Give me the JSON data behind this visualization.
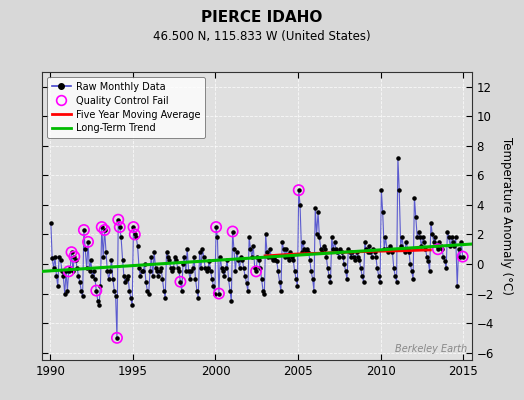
{
  "title": "PIERCE IDAHO",
  "subtitle": "46.500 N, 115.833 W (United States)",
  "ylabel_right": "Temperature Anomaly (°C)",
  "watermark": "Berkeley Earth",
  "xlim": [
    1989.5,
    2015.5
  ],
  "ylim": [
    -6.5,
    13.0
  ],
  "yticks": [
    -6,
    -4,
    -2,
    0,
    2,
    4,
    6,
    8,
    10,
    12
  ],
  "xticks": [
    1990,
    1995,
    2000,
    2005,
    2010,
    2015
  ],
  "bg_color": "#d8d8d8",
  "plot_bg_color": "#e0e0e0",
  "raw_line_color": "#4444cc",
  "raw_marker_color": "#000000",
  "qc_fail_color": "#ff00ff",
  "moving_avg_color": "#ff0000",
  "trend_color": "#00bb00",
  "raw_data": [
    [
      1990.04,
      2.8
    ],
    [
      1990.12,
      0.4
    ],
    [
      1990.21,
      -0.3
    ],
    [
      1990.29,
      0.5
    ],
    [
      1990.38,
      -0.8
    ],
    [
      1990.46,
      -1.5
    ],
    [
      1990.54,
      0.5
    ],
    [
      1990.63,
      0.3
    ],
    [
      1990.71,
      -0.5
    ],
    [
      1990.79,
      -0.8
    ],
    [
      1990.88,
      -2.0
    ],
    [
      1990.96,
      -0.5
    ],
    [
      1991.04,
      -1.8
    ],
    [
      1991.12,
      -0.5
    ],
    [
      1991.21,
      -0.3
    ],
    [
      1991.29,
      0.8
    ],
    [
      1991.38,
      -0.5
    ],
    [
      1991.46,
      0.5
    ],
    [
      1991.54,
      0.3
    ],
    [
      1991.63,
      -0.3
    ],
    [
      1991.71,
      -0.8
    ],
    [
      1991.79,
      -1.2
    ],
    [
      1991.88,
      -1.8
    ],
    [
      1991.96,
      -2.2
    ],
    [
      1992.04,
      2.3
    ],
    [
      1992.12,
      1.0
    ],
    [
      1992.21,
      -0.3
    ],
    [
      1992.29,
      1.5
    ],
    [
      1992.38,
      -0.5
    ],
    [
      1992.46,
      0.3
    ],
    [
      1992.54,
      -0.8
    ],
    [
      1992.63,
      -0.5
    ],
    [
      1992.71,
      -1.0
    ],
    [
      1992.79,
      -1.8
    ],
    [
      1992.88,
      -2.5
    ],
    [
      1992.96,
      -2.8
    ],
    [
      1993.04,
      -1.5
    ],
    [
      1993.12,
      2.5
    ],
    [
      1993.21,
      0.5
    ],
    [
      1993.29,
      2.3
    ],
    [
      1993.38,
      0.8
    ],
    [
      1993.46,
      -0.5
    ],
    [
      1993.54,
      -1.0
    ],
    [
      1993.63,
      -0.5
    ],
    [
      1993.71,
      0.3
    ],
    [
      1993.79,
      -1.0
    ],
    [
      1993.88,
      -1.8
    ],
    [
      1993.96,
      -2.2
    ],
    [
      1994.04,
      -5.0
    ],
    [
      1994.12,
      3.0
    ],
    [
      1994.21,
      2.5
    ],
    [
      1994.29,
      1.8
    ],
    [
      1994.38,
      0.3
    ],
    [
      1994.46,
      -0.8
    ],
    [
      1994.54,
      -1.2
    ],
    [
      1994.63,
      -1.0
    ],
    [
      1994.71,
      -0.8
    ],
    [
      1994.79,
      -1.8
    ],
    [
      1994.88,
      -2.3
    ],
    [
      1994.96,
      -2.8
    ],
    [
      1995.04,
      2.5
    ],
    [
      1995.12,
      2.0
    ],
    [
      1995.21,
      1.8
    ],
    [
      1995.29,
      1.2
    ],
    [
      1995.38,
      -0.3
    ],
    [
      1995.46,
      -0.8
    ],
    [
      1995.54,
      -0.5
    ],
    [
      1995.63,
      -0.5
    ],
    [
      1995.71,
      0.0
    ],
    [
      1995.79,
      -1.2
    ],
    [
      1995.88,
      -1.8
    ],
    [
      1995.96,
      -2.0
    ],
    [
      1996.04,
      -0.5
    ],
    [
      1996.12,
      0.5
    ],
    [
      1996.21,
      -0.8
    ],
    [
      1996.29,
      0.8
    ],
    [
      1996.38,
      -0.3
    ],
    [
      1996.46,
      -0.5
    ],
    [
      1996.54,
      -0.8
    ],
    [
      1996.63,
      -0.5
    ],
    [
      1996.71,
      -0.3
    ],
    [
      1996.79,
      -1.0
    ],
    [
      1996.88,
      -1.8
    ],
    [
      1996.96,
      -2.3
    ],
    [
      1997.04,
      0.8
    ],
    [
      1997.12,
      0.5
    ],
    [
      1997.21,
      0.3
    ],
    [
      1997.29,
      -0.3
    ],
    [
      1997.38,
      -0.5
    ],
    [
      1997.46,
      -0.3
    ],
    [
      1997.54,
      0.5
    ],
    [
      1997.63,
      0.3
    ],
    [
      1997.71,
      -0.3
    ],
    [
      1997.79,
      -0.5
    ],
    [
      1997.88,
      -1.2
    ],
    [
      1997.96,
      -1.8
    ],
    [
      1998.04,
      0.0
    ],
    [
      1998.12,
      0.5
    ],
    [
      1998.21,
      -0.5
    ],
    [
      1998.29,
      1.0
    ],
    [
      1998.38,
      -0.5
    ],
    [
      1998.46,
      -1.0
    ],
    [
      1998.54,
      -0.5
    ],
    [
      1998.63,
      -0.3
    ],
    [
      1998.71,
      0.5
    ],
    [
      1998.79,
      -1.0
    ],
    [
      1998.88,
      -1.8
    ],
    [
      1998.96,
      -2.3
    ],
    [
      1999.04,
      0.8
    ],
    [
      1999.12,
      -0.3
    ],
    [
      1999.21,
      1.0
    ],
    [
      1999.29,
      0.5
    ],
    [
      1999.38,
      -0.3
    ],
    [
      1999.46,
      -0.5
    ],
    [
      1999.54,
      -0.3
    ],
    [
      1999.63,
      0.2
    ],
    [
      1999.71,
      -0.5
    ],
    [
      1999.79,
      -1.0
    ],
    [
      1999.88,
      -1.5
    ],
    [
      1999.96,
      -2.0
    ],
    [
      2000.04,
      2.5
    ],
    [
      2000.12,
      1.8
    ],
    [
      2000.21,
      -2.0
    ],
    [
      2000.29,
      0.5
    ],
    [
      2000.38,
      -0.3
    ],
    [
      2000.46,
      -0.5
    ],
    [
      2000.54,
      -0.8
    ],
    [
      2000.63,
      -0.3
    ],
    [
      2000.71,
      0.3
    ],
    [
      2000.79,
      -1.0
    ],
    [
      2000.88,
      -1.8
    ],
    [
      2000.96,
      -2.5
    ],
    [
      2001.04,
      2.2
    ],
    [
      2001.12,
      1.0
    ],
    [
      2001.21,
      -0.5
    ],
    [
      2001.29,
      0.8
    ],
    [
      2001.38,
      0.3
    ],
    [
      2001.46,
      -0.3
    ],
    [
      2001.54,
      0.5
    ],
    [
      2001.63,
      0.3
    ],
    [
      2001.71,
      -0.3
    ],
    [
      2001.79,
      -0.8
    ],
    [
      2001.88,
      -1.3
    ],
    [
      2001.96,
      -1.8
    ],
    [
      2002.04,
      1.8
    ],
    [
      2002.12,
      1.0
    ],
    [
      2002.21,
      0.5
    ],
    [
      2002.29,
      1.2
    ],
    [
      2002.38,
      -0.3
    ],
    [
      2002.46,
      -0.5
    ],
    [
      2002.54,
      0.5
    ],
    [
      2002.63,
      0.3
    ],
    [
      2002.71,
      -0.3
    ],
    [
      2002.79,
      -1.0
    ],
    [
      2002.88,
      -1.8
    ],
    [
      2002.96,
      -2.0
    ],
    [
      2003.04,
      2.0
    ],
    [
      2003.12,
      0.8
    ],
    [
      2003.21,
      0.5
    ],
    [
      2003.29,
      1.0
    ],
    [
      2003.38,
      0.5
    ],
    [
      2003.46,
      0.3
    ],
    [
      2003.54,
      0.5
    ],
    [
      2003.63,
      0.3
    ],
    [
      2003.71,
      0.2
    ],
    [
      2003.79,
      -0.5
    ],
    [
      2003.88,
      -1.2
    ],
    [
      2003.96,
      -1.8
    ],
    [
      2004.04,
      1.5
    ],
    [
      2004.12,
      1.0
    ],
    [
      2004.21,
      0.5
    ],
    [
      2004.29,
      1.0
    ],
    [
      2004.38,
      0.5
    ],
    [
      2004.46,
      0.3
    ],
    [
      2004.54,
      0.8
    ],
    [
      2004.63,
      0.5
    ],
    [
      2004.71,
      0.3
    ],
    [
      2004.79,
      -0.5
    ],
    [
      2004.88,
      -1.0
    ],
    [
      2004.96,
      -1.5
    ],
    [
      2005.04,
      5.0
    ],
    [
      2005.12,
      4.0
    ],
    [
      2005.21,
      0.8
    ],
    [
      2005.29,
      1.5
    ],
    [
      2005.38,
      1.0
    ],
    [
      2005.46,
      0.8
    ],
    [
      2005.54,
      1.0
    ],
    [
      2005.63,
      0.8
    ],
    [
      2005.71,
      0.3
    ],
    [
      2005.79,
      -0.5
    ],
    [
      2005.88,
      -1.0
    ],
    [
      2005.96,
      -1.8
    ],
    [
      2006.04,
      3.8
    ],
    [
      2006.12,
      2.0
    ],
    [
      2006.21,
      3.5
    ],
    [
      2006.29,
      1.8
    ],
    [
      2006.38,
      1.0
    ],
    [
      2006.46,
      0.8
    ],
    [
      2006.54,
      1.2
    ],
    [
      2006.63,
      1.0
    ],
    [
      2006.71,
      0.5
    ],
    [
      2006.79,
      -0.3
    ],
    [
      2006.88,
      -0.8
    ],
    [
      2006.96,
      -1.2
    ],
    [
      2007.04,
      1.8
    ],
    [
      2007.12,
      1.0
    ],
    [
      2007.21,
      1.5
    ],
    [
      2007.29,
      1.0
    ],
    [
      2007.38,
      0.8
    ],
    [
      2007.46,
      0.5
    ],
    [
      2007.54,
      1.0
    ],
    [
      2007.63,
      0.8
    ],
    [
      2007.71,
      0.5
    ],
    [
      2007.79,
      0.0
    ],
    [
      2007.88,
      -0.5
    ],
    [
      2007.96,
      -1.0
    ],
    [
      2008.04,
      1.0
    ],
    [
      2008.12,
      0.8
    ],
    [
      2008.21,
      0.5
    ],
    [
      2008.29,
      0.8
    ],
    [
      2008.38,
      0.5
    ],
    [
      2008.46,
      0.3
    ],
    [
      2008.54,
      0.8
    ],
    [
      2008.63,
      0.5
    ],
    [
      2008.71,
      0.3
    ],
    [
      2008.79,
      -0.3
    ],
    [
      2008.88,
      -0.8
    ],
    [
      2008.96,
      -1.2
    ],
    [
      2009.04,
      1.5
    ],
    [
      2009.12,
      1.0
    ],
    [
      2009.21,
      0.8
    ],
    [
      2009.29,
      1.2
    ],
    [
      2009.38,
      0.8
    ],
    [
      2009.46,
      0.5
    ],
    [
      2009.54,
      1.0
    ],
    [
      2009.63,
      0.8
    ],
    [
      2009.71,
      0.5
    ],
    [
      2009.79,
      -0.3
    ],
    [
      2009.88,
      -0.8
    ],
    [
      2009.96,
      -1.2
    ],
    [
      2010.04,
      5.0
    ],
    [
      2010.12,
      3.5
    ],
    [
      2010.21,
      1.0
    ],
    [
      2010.29,
      1.8
    ],
    [
      2010.38,
      1.0
    ],
    [
      2010.46,
      0.8
    ],
    [
      2010.54,
      1.2
    ],
    [
      2010.63,
      1.0
    ],
    [
      2010.71,
      0.8
    ],
    [
      2010.79,
      -0.3
    ],
    [
      2010.88,
      -0.8
    ],
    [
      2010.96,
      -1.2
    ],
    [
      2011.04,
      7.2
    ],
    [
      2011.12,
      5.0
    ],
    [
      2011.21,
      1.2
    ],
    [
      2011.29,
      1.8
    ],
    [
      2011.38,
      1.0
    ],
    [
      2011.46,
      0.8
    ],
    [
      2011.54,
      1.5
    ],
    [
      2011.63,
      1.0
    ],
    [
      2011.71,
      0.8
    ],
    [
      2011.79,
      0.0
    ],
    [
      2011.88,
      -0.5
    ],
    [
      2011.96,
      -1.0
    ],
    [
      2012.04,
      4.5
    ],
    [
      2012.12,
      3.2
    ],
    [
      2012.21,
      1.8
    ],
    [
      2012.29,
      2.2
    ],
    [
      2012.38,
      1.8
    ],
    [
      2012.46,
      1.2
    ],
    [
      2012.54,
      1.8
    ],
    [
      2012.63,
      1.5
    ],
    [
      2012.71,
      1.0
    ],
    [
      2012.79,
      0.5
    ],
    [
      2012.88,
      0.2
    ],
    [
      2012.96,
      -0.5
    ],
    [
      2013.04,
      2.8
    ],
    [
      2013.12,
      2.0
    ],
    [
      2013.21,
      1.5
    ],
    [
      2013.29,
      1.8
    ],
    [
      2013.38,
      1.2
    ],
    [
      2013.46,
      1.0
    ],
    [
      2013.54,
      1.5
    ],
    [
      2013.63,
      1.2
    ],
    [
      2013.71,
      1.0
    ],
    [
      2013.79,
      0.5
    ],
    [
      2013.88,
      0.2
    ],
    [
      2013.96,
      -0.3
    ],
    [
      2014.04,
      2.2
    ],
    [
      2014.12,
      1.8
    ],
    [
      2014.21,
      1.2
    ],
    [
      2014.29,
      1.8
    ],
    [
      2014.38,
      1.5
    ],
    [
      2014.46,
      1.2
    ],
    [
      2014.54,
      1.8
    ],
    [
      2014.63,
      -1.5
    ],
    [
      2014.71,
      1.0
    ],
    [
      2014.79,
      0.5
    ],
    [
      2014.88,
      1.5
    ],
    [
      2014.96,
      0.5
    ]
  ],
  "qc_fail_points": [
    [
      1991.12,
      -0.5
    ],
    [
      1991.29,
      0.8
    ],
    [
      1991.46,
      0.5
    ],
    [
      1992.04,
      2.3
    ],
    [
      1992.29,
      1.5
    ],
    [
      1992.79,
      -1.8
    ],
    [
      1993.12,
      2.5
    ],
    [
      1993.29,
      2.3
    ],
    [
      1994.04,
      -5.0
    ],
    [
      1994.12,
      3.0
    ],
    [
      1994.21,
      2.5
    ],
    [
      1995.04,
      2.5
    ],
    [
      1995.12,
      2.0
    ],
    [
      1997.88,
      -1.2
    ],
    [
      2000.04,
      2.5
    ],
    [
      2000.21,
      -2.0
    ],
    [
      2001.04,
      2.2
    ],
    [
      2002.46,
      -0.5
    ],
    [
      2005.04,
      5.0
    ],
    [
      2013.46,
      1.0
    ],
    [
      2014.96,
      0.5
    ]
  ],
  "moving_avg_x": [
    2003.0,
    2003.5,
    2004.0,
    2004.5,
    2005.0,
    2005.5,
    2006.0,
    2006.5,
    2007.0,
    2007.5,
    2008.0,
    2008.5,
    2009.0,
    2009.5,
    2010.0,
    2010.5,
    2011.0,
    2011.5,
    2012.0,
    2012.5,
    2013.0
  ],
  "moving_avg_y": [
    0.55,
    0.58,
    0.62,
    0.65,
    0.68,
    0.7,
    0.72,
    0.74,
    0.76,
    0.78,
    0.8,
    0.82,
    0.84,
    0.86,
    0.87,
    0.88,
    0.89,
    0.9,
    0.92,
    0.94,
    0.95
  ],
  "trend_x": [
    1989.5,
    2015.5
  ],
  "trend_y": [
    -0.5,
    1.35
  ]
}
